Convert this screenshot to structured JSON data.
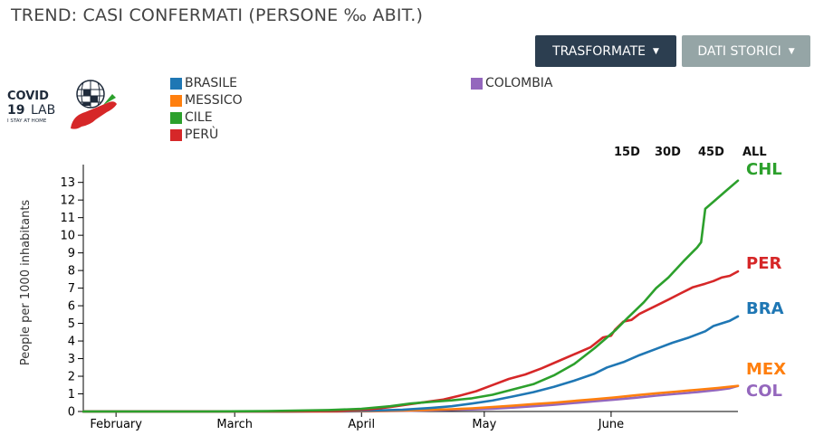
{
  "title": "TREND: CASI CONFERMATI (PERSONE ‰ ABIT.)",
  "buttons": {
    "transform": "TRASFORMATE",
    "history": "DATI STORICI"
  },
  "logo": {
    "line1": "COVID",
    "line2a": "19",
    "line2b": "LAB",
    "line3": "I STAY AT HOME"
  },
  "legend": [
    {
      "label": "BRASILE",
      "color": "#1f77b4"
    },
    {
      "label": "MESSICO",
      "color": "#ff7f0e"
    },
    {
      "label": "CILE",
      "color": "#2ca02c"
    },
    {
      "label": "PERÙ",
      "color": "#d62728"
    },
    {
      "label": "COLOMBIA",
      "color": "#9467bd"
    }
  ],
  "ranges": [
    "15D",
    "30D",
    "45D",
    "ALL"
  ],
  "chart_data": {
    "type": "line",
    "title": "TREND: CASI CONFERMATI (PERSONE ‰ ABIT.)",
    "ylabel": "People per 1000 inhabitants",
    "xlabel": "",
    "x_ticks": [
      "February",
      "March",
      "April",
      "May",
      "June"
    ],
    "x_tick_days": [
      8,
      37,
      68,
      98,
      129
    ],
    "xlim_days": [
      0,
      152
    ],
    "ylim": [
      0,
      13.6
    ],
    "y_ticks": [
      0,
      1,
      2,
      3,
      4,
      5,
      6,
      7,
      8,
      9,
      10,
      11,
      12,
      13
    ],
    "grid": false,
    "series": [
      {
        "name": "CHL",
        "color": "#2ca02c",
        "end_label": "CHL",
        "points": [
          [
            0,
            0
          ],
          [
            30,
            0
          ],
          [
            45,
            0.02
          ],
          [
            60,
            0.08
          ],
          [
            68,
            0.15
          ],
          [
            75,
            0.3
          ],
          [
            80,
            0.45
          ],
          [
            85,
            0.55
          ],
          [
            90,
            0.63
          ],
          [
            95,
            0.75
          ],
          [
            100,
            0.95
          ],
          [
            105,
            1.25
          ],
          [
            110,
            1.55
          ],
          [
            115,
            2.05
          ],
          [
            120,
            2.7
          ],
          [
            125,
            3.6
          ],
          [
            130,
            4.6
          ],
          [
            133,
            5.3
          ],
          [
            137,
            6.2
          ],
          [
            140,
            7.0
          ],
          [
            143,
            7.6
          ],
          [
            147,
            8.6
          ],
          [
            150,
            9.3
          ],
          [
            151,
            9.6
          ],
          [
            152,
            11.5
          ],
          [
            154,
            11.9
          ],
          [
            157,
            12.5
          ],
          [
            160,
            13.1
          ]
        ]
      },
      {
        "name": "PER",
        "color": "#d62728",
        "end_label": "PER",
        "points": [
          [
            0,
            0
          ],
          [
            50,
            0
          ],
          [
            62,
            0.03
          ],
          [
            70,
            0.12
          ],
          [
            75,
            0.25
          ],
          [
            80,
            0.42
          ],
          [
            85,
            0.58
          ],
          [
            88,
            0.68
          ],
          [
            92,
            0.9
          ],
          [
            96,
            1.15
          ],
          [
            100,
            1.5
          ],
          [
            104,
            1.85
          ],
          [
            108,
            2.1
          ],
          [
            112,
            2.45
          ],
          [
            116,
            2.85
          ],
          [
            120,
            3.25
          ],
          [
            124,
            3.65
          ],
          [
            127,
            4.2
          ],
          [
            129,
            4.3
          ],
          [
            130,
            4.65
          ],
          [
            132,
            5.1
          ],
          [
            134,
            5.2
          ],
          [
            136,
            5.55
          ],
          [
            140,
            6.0
          ],
          [
            143,
            6.35
          ],
          [
            146,
            6.7
          ],
          [
            149,
            7.05
          ],
          [
            152,
            7.25
          ],
          [
            154,
            7.4
          ],
          [
            156,
            7.6
          ],
          [
            158,
            7.7
          ],
          [
            160,
            7.95
          ]
        ]
      },
      {
        "name": "BRA",
        "color": "#1f77b4",
        "end_label": "BRA",
        "points": [
          [
            0,
            0
          ],
          [
            50,
            0
          ],
          [
            62,
            0.02
          ],
          [
            70,
            0.05
          ],
          [
            78,
            0.1
          ],
          [
            85,
            0.2
          ],
          [
            90,
            0.3
          ],
          [
            95,
            0.45
          ],
          [
            100,
            0.62
          ],
          [
            105,
            0.85
          ],
          [
            110,
            1.1
          ],
          [
            115,
            1.4
          ],
          [
            120,
            1.75
          ],
          [
            125,
            2.15
          ],
          [
            128,
            2.5
          ],
          [
            132,
            2.8
          ],
          [
            136,
            3.2
          ],
          [
            140,
            3.55
          ],
          [
            144,
            3.9
          ],
          [
            148,
            4.2
          ],
          [
            152,
            4.55
          ],
          [
            154,
            4.85
          ],
          [
            156,
            5.0
          ],
          [
            158,
            5.15
          ],
          [
            160,
            5.4
          ]
        ]
      },
      {
        "name": "MEX",
        "color": "#ff7f0e",
        "end_label": "MEX",
        "points": [
          [
            0,
            0
          ],
          [
            60,
            0
          ],
          [
            70,
            0.02
          ],
          [
            80,
            0.06
          ],
          [
            90,
            0.13
          ],
          [
            95,
            0.18
          ],
          [
            100,
            0.25
          ],
          [
            105,
            0.33
          ],
          [
            110,
            0.42
          ],
          [
            115,
            0.5
          ],
          [
            120,
            0.6
          ],
          [
            125,
            0.7
          ],
          [
            130,
            0.8
          ],
          [
            135,
            0.92
          ],
          [
            140,
            1.03
          ],
          [
            145,
            1.13
          ],
          [
            150,
            1.23
          ],
          [
            155,
            1.33
          ],
          [
            160,
            1.45
          ]
        ]
      },
      {
        "name": "COL",
        "color": "#9467bd",
        "end_label": "COL",
        "points": [
          [
            0,
            0
          ],
          [
            60,
            0
          ],
          [
            70,
            0.01
          ],
          [
            80,
            0.04
          ],
          [
            90,
            0.09
          ],
          [
            95,
            0.12
          ],
          [
            100,
            0.16
          ],
          [
            105,
            0.22
          ],
          [
            110,
            0.3
          ],
          [
            115,
            0.38
          ],
          [
            120,
            0.48
          ],
          [
            125,
            0.58
          ],
          [
            130,
            0.68
          ],
          [
            135,
            0.78
          ],
          [
            140,
            0.9
          ],
          [
            145,
            1.0
          ],
          [
            150,
            1.1
          ],
          [
            155,
            1.22
          ],
          [
            158,
            1.32
          ],
          [
            160,
            1.45
          ]
        ]
      }
    ]
  }
}
